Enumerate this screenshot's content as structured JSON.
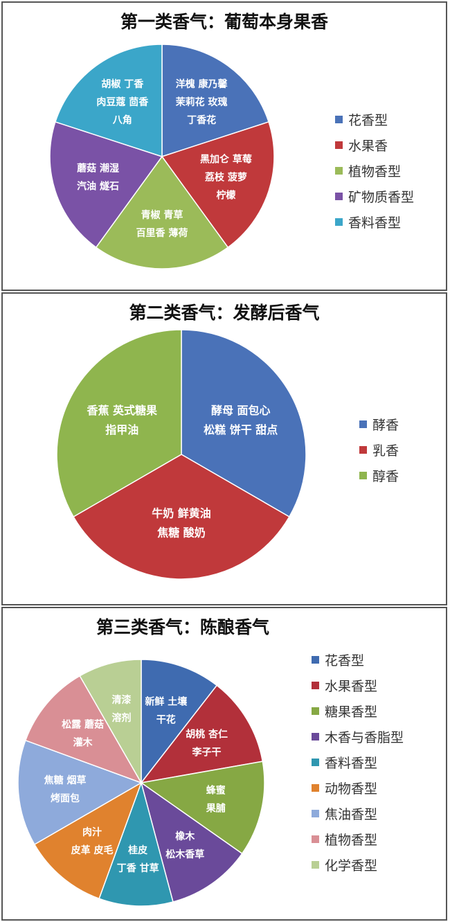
{
  "chart_data": [
    {
      "type": "pie",
      "title": "第一类香气：葡萄本身果香",
      "legend_position": "right",
      "slices": [
        {
          "name": "花香型",
          "value": 20,
          "color": "#4a72b8",
          "labels": [
            "洋槐 康乃馨",
            "茉莉花 玫瑰",
            "丁香花"
          ]
        },
        {
          "name": "水果香",
          "value": 20,
          "color": "#c0393b",
          "labels": [
            "黑加仑 草莓",
            "荔枝 菠萝",
            "柠檬"
          ]
        },
        {
          "name": "植物香型",
          "value": 20,
          "color": "#9bbb59",
          "labels": [
            "青椒 青草",
            "百里香 薄荷"
          ]
        },
        {
          "name": "矿物质香型",
          "value": 20,
          "color": "#7a52a6",
          "labels": [
            "蘑菇 潮湿",
            "汽油 燧石"
          ]
        },
        {
          "name": "香料香型",
          "value": 20,
          "color": "#3ba6c9",
          "labels": [
            "胡椒 丁香",
            "肉豆蔻 茴香",
            "八角"
          ]
        }
      ]
    },
    {
      "type": "pie",
      "title": "第二类香气：发酵后香气",
      "legend_position": "right",
      "slices": [
        {
          "name": "酵香",
          "value": 33.3,
          "color": "#4a72b8",
          "labels": [
            "酵母 面包心",
            "松糕 饼干 甜点"
          ]
        },
        {
          "name": "乳香",
          "value": 33.3,
          "color": "#c0393b",
          "labels": [
            "牛奶 鲜黄油",
            "焦糖 酸奶"
          ]
        },
        {
          "name": "醇香",
          "value": 33.3,
          "color": "#8fb54e",
          "labels": [
            "香蕉 英式糖果",
            "指甲油"
          ]
        }
      ]
    },
    {
      "type": "pie",
      "title": "第三类香气：陈酿香气",
      "legend_position": "right",
      "slices": [
        {
          "name": "花香型",
          "value": 10.5,
          "color": "#3f6bb0",
          "labels": [
            "新鲜 土壤",
            "干花"
          ]
        },
        {
          "name": "水果香型",
          "value": 11.7,
          "color": "#b2303a",
          "labels": [
            "胡桃 杏仁",
            "李子干"
          ]
        },
        {
          "name": "糖果香型",
          "value": 12.5,
          "color": "#86a844",
          "labels": [
            "蜂蜜",
            "果脯"
          ]
        },
        {
          "name": "木香与香脂型",
          "value": 11.1,
          "color": "#6a4a9a",
          "labels": [
            "橡木",
            "松木香草"
          ]
        },
        {
          "name": "香料香型",
          "value": 9.7,
          "color": "#2f97b0",
          "labels": [
            "桂皮",
            "丁香 甘草"
          ]
        },
        {
          "name": "动物香型",
          "value": 11.1,
          "color": "#e0822e",
          "labels": [
            "肉汁",
            "皮革 皮毛"
          ]
        },
        {
          "name": "焦油香型",
          "value": 13.9,
          "color": "#8eaadb",
          "labels": [
            "焦糖 烟草",
            "烤面包"
          ]
        },
        {
          "name": "植物香型",
          "value": 11.1,
          "color": "#d98f95",
          "labels": [
            "松露 蘑菇",
            "灌木"
          ]
        },
        {
          "name": "化学香型",
          "value": 8.3,
          "color": "#b9cf94",
          "labels": [
            "清漆",
            "溶剂"
          ]
        }
      ]
    }
  ]
}
